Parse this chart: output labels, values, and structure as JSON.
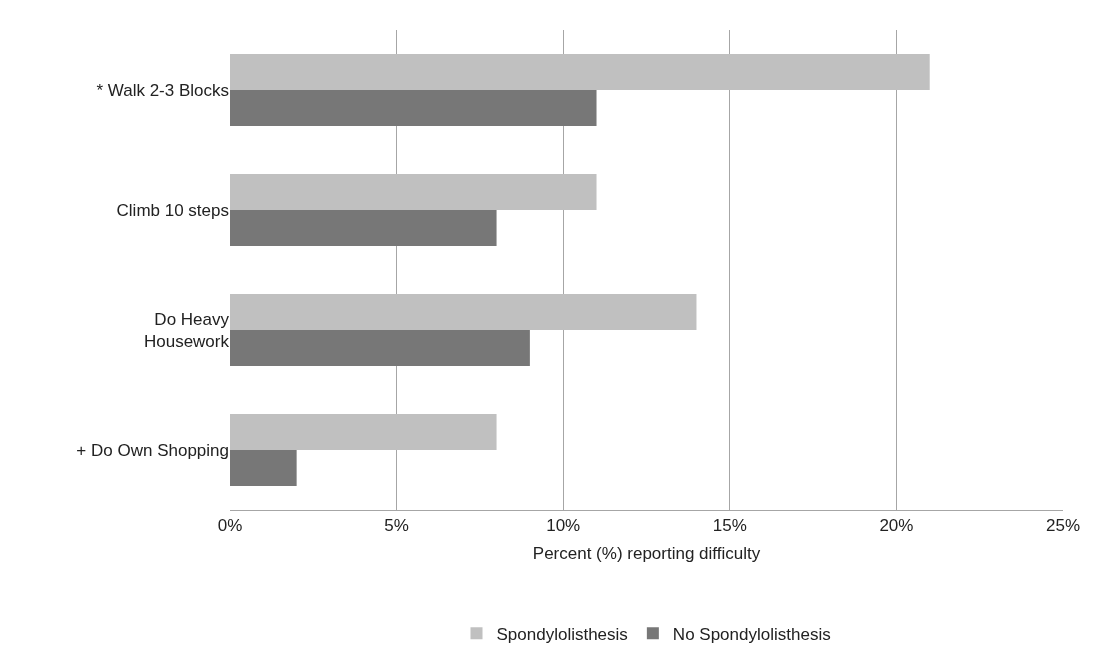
{
  "chart_data": {
    "type": "bar",
    "orientation": "horizontal",
    "xlabel": "Percent (%) reporting difficulty",
    "categories": [
      "* Walk 2-3 Blocks",
      "Climb 10 steps",
      "Do Heavy Housework",
      "+ Do Own Shopping"
    ],
    "series": [
      {
        "name": "Spondylolisthesis",
        "color": "#c0c0c0",
        "values": [
          21,
          11,
          14,
          8
        ]
      },
      {
        "name": "No Spondylolisthesis",
        "color": "#777777",
        "values": [
          11,
          8,
          9,
          2
        ]
      }
    ],
    "xlim": [
      0,
      25
    ],
    "xticks": [
      {
        "value": 0,
        "label": "0%"
      },
      {
        "value": 5,
        "label": "5%"
      },
      {
        "value": 10,
        "label": "10%"
      },
      {
        "value": 15,
        "label": "15%"
      },
      {
        "value": 20,
        "label": "20%"
      },
      {
        "value": 25,
        "label": "25%"
      }
    ],
    "grid": "x",
    "legend": "bottom"
  }
}
